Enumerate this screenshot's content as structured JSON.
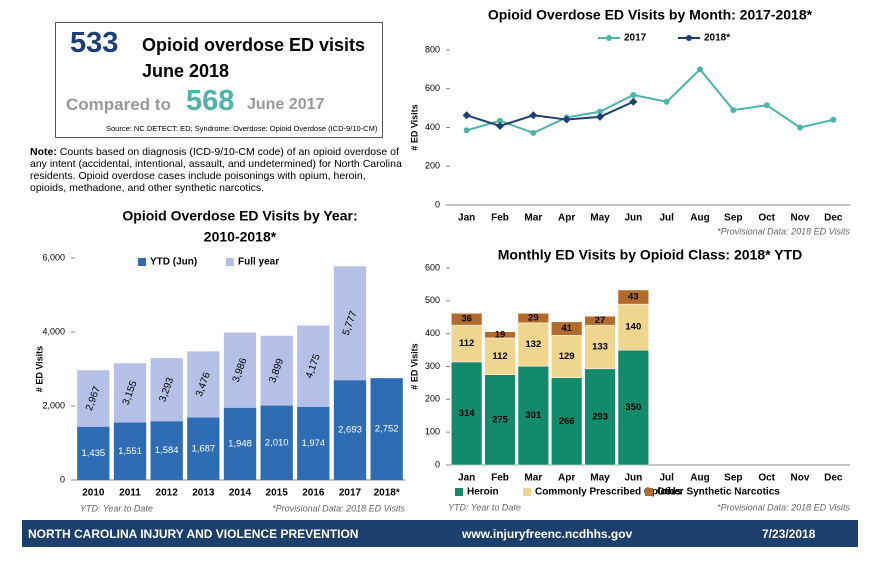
{
  "header": {
    "count": 533,
    "label": "Opioid overdose ED visits",
    "period": "June 2018",
    "compare_text": "Compared to",
    "compare_count": 568,
    "compare_period": "June 2017",
    "source": "Source: NC DETECT: ED; Syndrome: Overdose: Opioid Overdose (ICD-9/10-CM)"
  },
  "note": {
    "lead": "Note:",
    "text": "Counts based on diagnosis (ICD-9/10-CM code) of an opioid overdose of any intent (accidental, intentional, assault, and undetermined) for North Carolina residents. Opioid overdose cases include poisonings with opium, heroin, opioids, methadone, and other synthetic narcotics."
  },
  "chart_data": [
    {
      "type": "line",
      "title": [
        "Opioid Overdose ED Visits by Month: 2017-2018*"
      ],
      "ylabel": "# ED Visits",
      "categories": [
        "Jan",
        "Feb",
        "Mar",
        "Apr",
        "May",
        "Jun",
        "Jul",
        "Aug",
        "Sep",
        "Oct",
        "Nov",
        "Dec"
      ],
      "series": [
        {
          "name": "2017",
          "color": "#4fb3a9",
          "values": [
            385,
            435,
            372,
            452,
            482,
            568,
            533,
            700,
            490,
            515,
            400,
            440
          ]
        },
        {
          "name": "2018*",
          "color": "#1f3f73",
          "values": [
            463,
            408,
            463,
            441,
            455,
            533,
            null,
            null,
            null,
            null,
            null,
            null
          ]
        }
      ],
      "ylim": [
        0,
        800
      ],
      "yticks": [
        0,
        200,
        400,
        600,
        800
      ],
      "notes": [
        "*Provisional Data: 2018 ED Visits"
      ]
    },
    {
      "type": "overlay_bar",
      "title": [
        "Opioid Overdose ED Visits by Year:",
        "2010-2018*"
      ],
      "ylabel": "# ED Visits",
      "categories": [
        "2010",
        "2011",
        "2012",
        "2013",
        "2014",
        "2015",
        "2016",
        "2017",
        "2018*"
      ],
      "series": [
        {
          "name": "Full year",
          "color": "#b4c0e6",
          "values": [
            2967,
            3155,
            3293,
            3476,
            3986,
            3899,
            4175,
            5777,
            null
          ],
          "value_labels": [
            "2,967",
            "3,155",
            "3,293",
            "3,476",
            "3,986",
            "3,899",
            "4,175",
            "5,777",
            null
          ]
        },
        {
          "name": "YTD (Jun)",
          "color": "#2e6db4",
          "values": [
            1435,
            1551,
            1584,
            1687,
            1948,
            2010,
            1974,
            2693,
            2752
          ],
          "value_labels": [
            "1,435",
            "1,551",
            "1,584",
            "1,687",
            "1,948",
            "2,010",
            "1,974",
            "2,693",
            "2,752"
          ]
        }
      ],
      "ylim": [
        0,
        6000
      ],
      "yticks": [
        0,
        {
          "value": 2000,
          "label": "2,000"
        },
        {
          "value": 4000,
          "label": "4,000"
        },
        {
          "value": 6000,
          "label": "6,000"
        }
      ],
      "notes": [
        "YTD: Year to Date",
        "*Provisional Data: 2018 ED Visits"
      ]
    },
    {
      "type": "stacked_bar",
      "title": [
        "Monthly ED Visits by Opioid Class: 2018* YTD"
      ],
      "ylabel": "# ED Visits",
      "categories": [
        "Jan",
        "Feb",
        "Mar",
        "Apr",
        "May",
        "Jun",
        "Jul",
        "Aug",
        "Sep",
        "Oct",
        "Nov",
        "Dec"
      ],
      "series": [
        {
          "name": "Heroin",
          "color": "#138a6b",
          "values": [
            314,
            275,
            301,
            266,
            293,
            350,
            null,
            null,
            null,
            null,
            null,
            null
          ]
        },
        {
          "name": "Commonly Prescribed Opioids",
          "color": "#f0d58e",
          "values": [
            112,
            112,
            132,
            129,
            133,
            140,
            null,
            null,
            null,
            null,
            null,
            null
          ]
        },
        {
          "name": "Other Synthetic Narcotics",
          "color": "#b26b2a",
          "values": [
            36,
            19,
            29,
            41,
            27,
            43,
            null,
            null,
            null,
            null,
            null,
            null
          ]
        }
      ],
      "ylim": [
        0,
        600
      ],
      "yticks": [
        0,
        100,
        200,
        300,
        400,
        500,
        600
      ],
      "notes": [
        "YTD: Year to Date",
        "*Provisional Data: 2018 ED Visits"
      ]
    }
  ],
  "footer": {
    "org": "NORTH CAROLINA INJURY AND VIOLENCE PREVENTION",
    "url": "www.injuryfreenc.ncdhhs.gov",
    "date": "7/23/2018"
  }
}
